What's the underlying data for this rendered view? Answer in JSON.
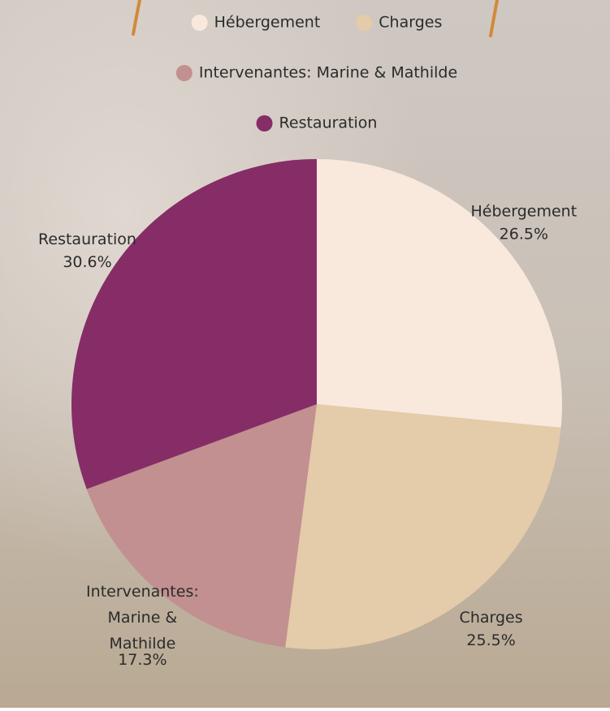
{
  "chart_data": {
    "type": "pie",
    "categories": [
      "Hébergement",
      "Charges",
      "Intervenantes: Marine & Mathilde",
      "Restauration"
    ],
    "values": [
      26.5,
      25.5,
      17.3,
      30.6
    ],
    "value_labels": [
      "26.5%",
      "25.5%",
      "17.3%",
      "30.6%"
    ],
    "colors": [
      "#f9e9dc",
      "#e4cba9",
      "#c29090",
      "#862d67"
    ]
  }
}
